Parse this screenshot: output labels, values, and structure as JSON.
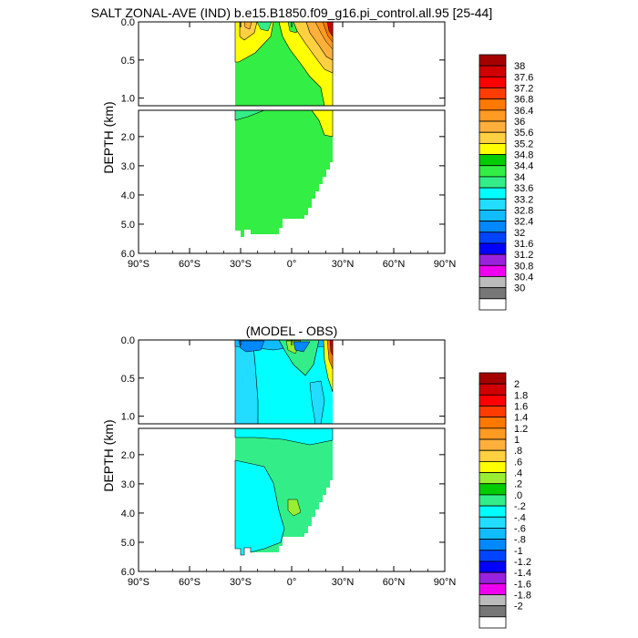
{
  "page": {
    "background": "#ffffff"
  },
  "chart_data": [
    {
      "type": "contour",
      "title": "SALT ZONAL-AVE (IND) b.e15.B1850.f09_g16.pi_control.all.95 [25-44]",
      "xlabel": "",
      "ylabel": "DEPTH (km)",
      "x_ticks": [
        "90°S",
        "60°S",
        "30°S",
        "0°",
        "30°N",
        "60°N",
        "90°N"
      ],
      "x_tick_values": [
        -90,
        -60,
        -30,
        0,
        30,
        60,
        90
      ],
      "y_ticks_upper": [
        "0.0",
        "0.5",
        "1.0"
      ],
      "y_tick_values_upper": [
        0.0,
        0.5,
        1.0
      ],
      "y_ticks_lower": [
        "2.0",
        "3.0",
        "4.0",
        "5.0",
        "6.0"
      ],
      "y_tick_values_lower": [
        2.0,
        3.0,
        4.0,
        5.0,
        6.0
      ],
      "xlim": [
        -90,
        90
      ],
      "ylim_upper": [
        0.0,
        1.1
      ],
      "ylim_lower": [
        1.1,
        6.0
      ],
      "data_extent_lat": [
        -34,
        25
      ],
      "dominant_value": 34.6,
      "colorbar": {
        "labels": [
          "38",
          "37.6",
          "37.2",
          "36.8",
          "36.4",
          "36",
          "35.6",
          "35.2",
          "34.8",
          "34.4",
          "34",
          "33.6",
          "33.2",
          "32.8",
          "32.4",
          "32",
          "31.6",
          "31.2",
          "30.8",
          "30.4",
          "30"
        ],
        "colors": [
          "#a50000",
          "#d10000",
          "#ff0000",
          "#ff3c00",
          "#ff7800",
          "#ff9a22",
          "#ffb03c",
          "#ffd040",
          "#ffff00",
          "#00cc00",
          "#33ee44",
          "#33ee88",
          "#00ffff",
          "#22ddff",
          "#11bbff",
          "#0088ff",
          "#0044ff",
          "#0000ff",
          "#9922dd",
          "#ee00ee",
          "#bbbbbb",
          "#777777",
          "#ffffff"
        ]
      }
    },
    {
      "type": "contour",
      "title": "(MODEL - OBS)",
      "xlabel": "",
      "ylabel": "DEPTH (km)",
      "x_ticks": [
        "90°S",
        "60°S",
        "30°S",
        "0°",
        "30°N",
        "60°N",
        "90°N"
      ],
      "x_tick_values": [
        -90,
        -60,
        -30,
        0,
        30,
        60,
        90
      ],
      "y_ticks_upper": [
        "0.0",
        "0.5",
        "1.0"
      ],
      "y_tick_values_upper": [
        0.0,
        0.5,
        1.0
      ],
      "y_ticks_lower": [
        "2.0",
        "3.0",
        "4.0",
        "5.0",
        "6.0"
      ],
      "y_tick_values_lower": [
        2.0,
        3.0,
        4.0,
        5.0,
        6.0
      ],
      "xlim": [
        -90,
        90
      ],
      "ylim_upper": [
        0.0,
        1.1
      ],
      "ylim_lower": [
        1.1,
        6.0
      ],
      "data_extent_lat": [
        -34,
        25
      ],
      "dominant_value": -0.1,
      "colorbar": {
        "labels": [
          "2",
          "1.8",
          "1.6",
          "1.4",
          "1.2",
          "1",
          ".8",
          ".6",
          ".4",
          ".2",
          ".0",
          "-.2",
          "-.4",
          "-.6",
          "-.8",
          "-1",
          "-1.2",
          "-1.4",
          "-1.6",
          "-1.8",
          "-2"
        ],
        "colors": [
          "#a50000",
          "#d10000",
          "#ff0000",
          "#ff3c00",
          "#ff7800",
          "#ff9a22",
          "#ffb03c",
          "#ffd040",
          "#ffff00",
          "#99ee33",
          "#00cc00",
          "#33ee88",
          "#00ffff",
          "#22ddff",
          "#11bbff",
          "#0088ff",
          "#0044ff",
          "#0000ff",
          "#9922dd",
          "#ee00ee",
          "#bbbbbb",
          "#777777",
          "#ffffff"
        ]
      }
    }
  ]
}
